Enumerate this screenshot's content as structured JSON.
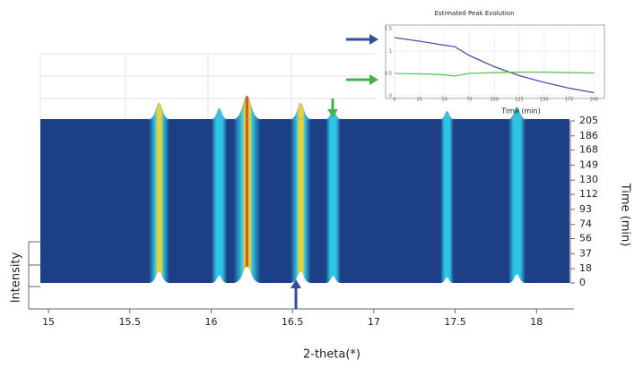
{
  "chart_data": [
    {
      "type": "heatmap",
      "xlabel": "2-theta(*)",
      "ylabel": "Intensity",
      "y2label": "Time (min)",
      "xlim": [
        14.95,
        18.23
      ],
      "xticks": [
        15,
        15.5,
        16,
        16.5,
        17,
        17.5,
        18
      ],
      "y2lim": [
        0,
        205
      ],
      "y2ticks": [
        0,
        18,
        37,
        56,
        74,
        93,
        112,
        130,
        149,
        168,
        186,
        205
      ],
      "peaks": {
        "x": [
          15.68,
          16.05,
          16.22,
          16.55,
          16.75,
          17.45,
          17.88
        ],
        "values": [
          0.6,
          0.3,
          1.0,
          0.6,
          0.25,
          0.15,
          0.4
        ]
      }
    },
    {
      "type": "line",
      "title": "Estimated Peak Evolution",
      "xlabel": "Time (min)",
      "x": [
        0,
        25,
        50,
        60,
        75,
        100,
        125,
        150,
        175,
        200
      ],
      "xlim": [
        0,
        205
      ],
      "xticks": [
        0,
        25,
        50,
        75,
        100,
        125,
        150,
        175,
        200
      ],
      "ylim": [
        0,
        1.5
      ],
      "yticks": [
        0,
        0.5,
        1,
        1.5
      ],
      "series": [
        {
          "color": "#5a4aa8",
          "values": [
            1.3,
            1.22,
            1.13,
            1.1,
            0.9,
            0.65,
            0.45,
            0.3,
            0.17,
            0.07
          ]
        },
        {
          "color": "#5cc35c",
          "values": [
            0.5,
            0.49,
            0.47,
            0.44,
            0.5,
            0.52,
            0.53,
            0.53,
            0.52,
            0.51
          ]
        }
      ]
    }
  ]
}
